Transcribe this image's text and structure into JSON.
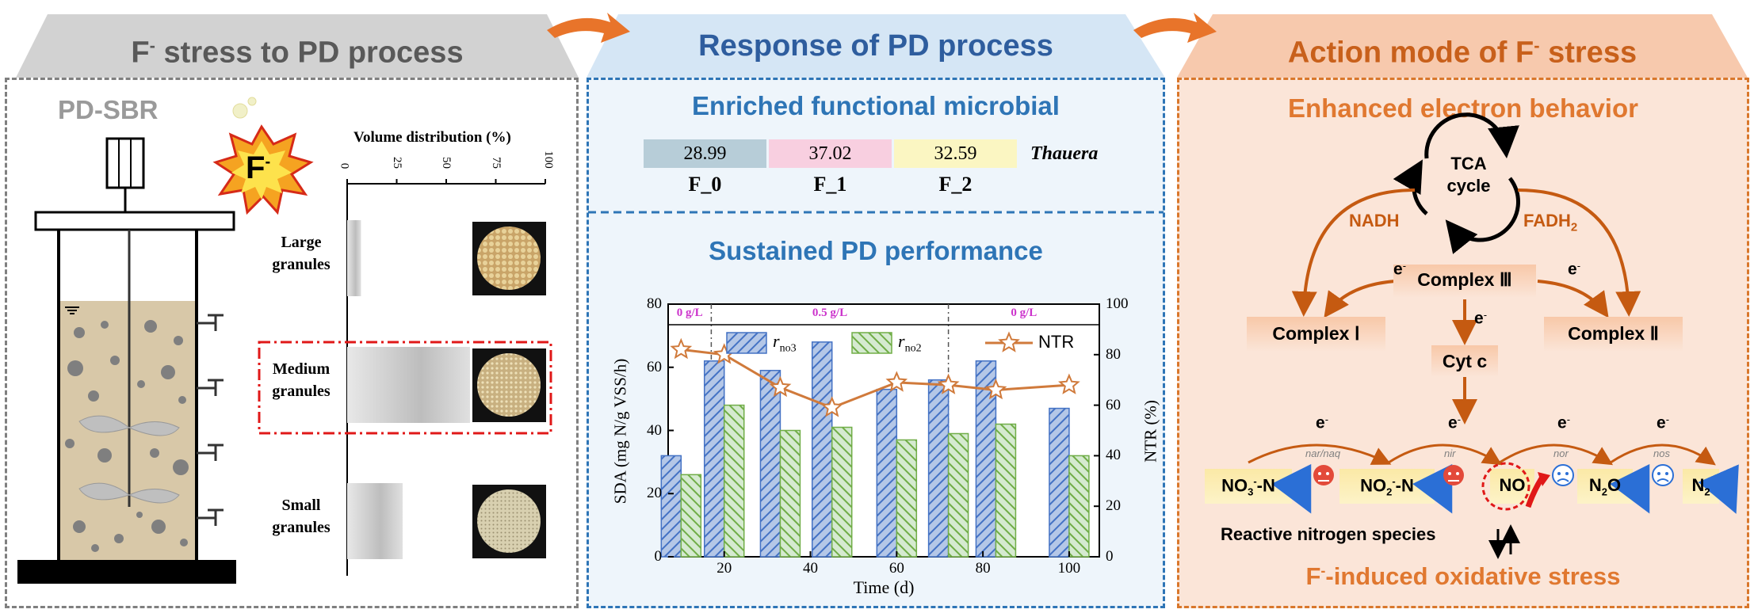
{
  "panel1": {
    "title_main": "F",
    "title_sup": "-",
    "title_rest": " stress to PD process",
    "reactor_label": "PD-SBR",
    "f_badge_main": "F",
    "f_badge_sup": "-",
    "vd_title": "Volume distribution (%)",
    "vd_ticks": [
      "0",
      "25",
      "50",
      "75",
      "100"
    ],
    "granules": [
      {
        "label_1": "Large",
        "label_2": "granules",
        "value": 7
      },
      {
        "label_1": "Medium",
        "label_2": "granules",
        "value": 62
      },
      {
        "label_1": "Small",
        "label_2": "granules",
        "value": 28
      }
    ]
  },
  "panel2": {
    "title": "Response of PD process",
    "sub1": "Enriched functional microbial",
    "genus": "Thauera",
    "abundance": [
      {
        "value": "28.99",
        "group": "F_0",
        "color": "#b7cdd8"
      },
      {
        "value": "37.02",
        "group": "F_1",
        "color": "#f8cfe0"
      },
      {
        "value": "32.59",
        "group": "F_2",
        "color": "#fbf6c2"
      }
    ],
    "sub2": "Sustained PD performance"
  },
  "panel3": {
    "title_main": "Action mode of F",
    "title_sup": "-",
    "title_rest": " stress",
    "sub1": "Enhanced electron behavior",
    "tca_1": "TCA",
    "tca_2": "cycle",
    "nadh": "NADH",
    "fadh_main": "FADH",
    "fadh_sub": "2",
    "complex_i": "Complex Ⅰ",
    "complex_ii": "Complex Ⅱ",
    "complex_iii": "Complex Ⅲ",
    "cytc": "Cyt c",
    "electron": "e",
    "electron_sup": "-",
    "species": [
      "NO3-N",
      "NO2-N",
      "NO",
      "N2O",
      "N2"
    ],
    "enzymes": [
      "nar/naq",
      "nir",
      "nor",
      "nos"
    ],
    "rns": "Reactive nitrogen species",
    "bottom_main": "F",
    "bottom_sup": "-",
    "bottom_rest": "-induced oxidative stress"
  },
  "colors": {
    "blue_title": "#2e75b6",
    "orange_title": "#d9772b",
    "gray_title": "#595959",
    "blue_bar": "#4472c4",
    "green_bar": "#70ad47",
    "ntr_line": "#d07a3b"
  },
  "chart_data": {
    "type": "bar",
    "x": [
      10,
      20,
      33,
      45,
      60,
      72,
      83,
      100
    ],
    "series": [
      {
        "name": "r_no3",
        "values": [
          32,
          62,
          59,
          68,
          53,
          56,
          62,
          47
        ]
      },
      {
        "name": "r_no2",
        "values": [
          26,
          48,
          40,
          41,
          37,
          39,
          42,
          32
        ]
      },
      {
        "name": "NTR",
        "values": [
          82,
          80,
          67,
          59,
          69,
          68,
          66,
          68
        ],
        "axis": "right"
      }
    ],
    "legend": [
      "r_no3",
      "r_no2",
      "NTR"
    ],
    "phases": [
      "0 g/L",
      "0.5 g/L",
      "0 g/L"
    ],
    "xlabel": "Time (d)",
    "ylabel": "SDA (mg N/g VSS/h)",
    "y2label": "NTR (%)",
    "x_ticks": [
      "20",
      "40",
      "60",
      "80",
      "100"
    ],
    "y_ticks": [
      "0",
      "20",
      "40",
      "60",
      "80"
    ],
    "y2_ticks": [
      "0",
      "20",
      "40",
      "60",
      "80",
      "100"
    ],
    "xlim": [
      7,
      107
    ],
    "ylim": [
      0,
      80
    ],
    "y2lim": [
      0,
      100
    ]
  }
}
